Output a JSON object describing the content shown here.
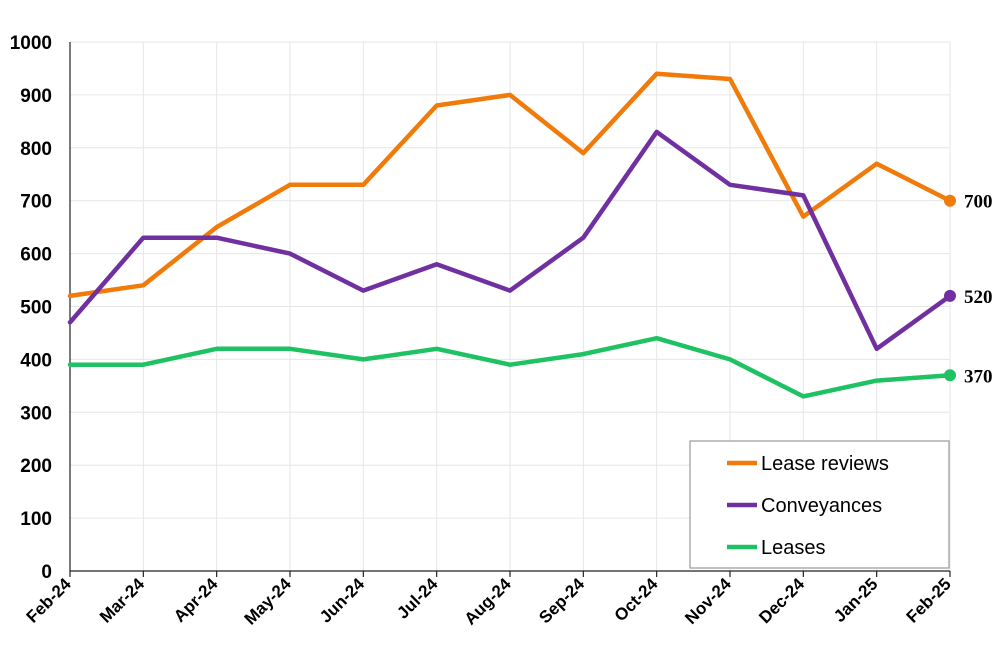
{
  "chart_data": {
    "type": "line",
    "categories": [
      "Feb-24",
      "Mar-24",
      "Apr-24",
      "May-24",
      "Jun-24",
      "Jul-24",
      "Aug-24",
      "Sep-24",
      "Oct-24",
      "Nov-24",
      "Dec-24",
      "Jan-25",
      "Feb-25"
    ],
    "ylim": [
      0,
      1000
    ],
    "yticks": [
      0,
      100,
      200,
      300,
      400,
      500,
      600,
      700,
      800,
      900,
      1000
    ],
    "grid": true,
    "legend_position": "bottom-right",
    "series": [
      {
        "name": "Lease reviews",
        "color": "#F07B0A",
        "end_label": "700",
        "values": [
          520,
          540,
          650,
          730,
          730,
          880,
          900,
          790,
          940,
          930,
          670,
          770,
          700
        ]
      },
      {
        "name": "Conveyances",
        "color": "#7030A0",
        "end_label": "520",
        "values": [
          470,
          630,
          630,
          600,
          530,
          580,
          530,
          630,
          830,
          730,
          710,
          420,
          520
        ]
      },
      {
        "name": "Leases",
        "color": "#1FC262",
        "end_label": "370",
        "values": [
          390,
          390,
          420,
          420,
          400,
          420,
          390,
          410,
          440,
          400,
          330,
          360,
          370
        ]
      }
    ]
  }
}
